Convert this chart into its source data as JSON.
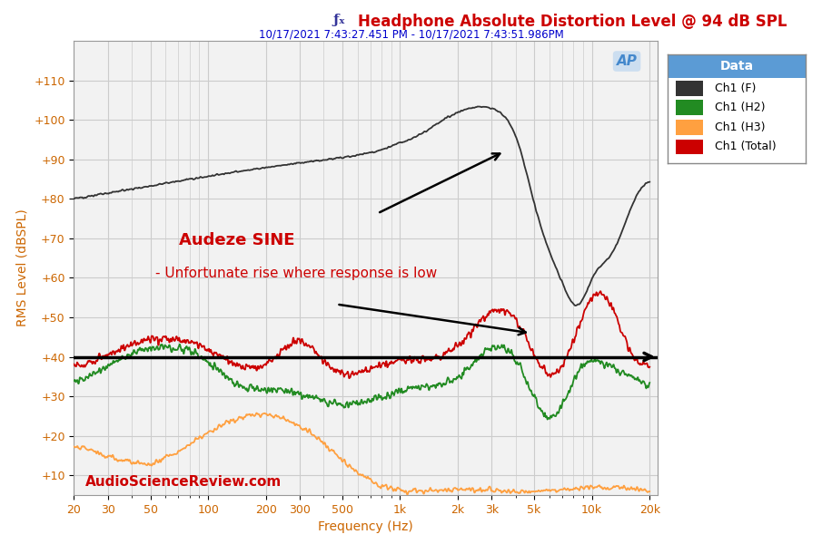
{
  "title": "Headphone Absolute Distortion Level @ 94 dB SPL",
  "subtitle": "10/17/2021 7:43:27.451 PM - 10/17/2021 7:43:51.986PM",
  "xlabel": "Frequency (Hz)",
  "ylabel": "RMS Level (dBSPL)",
  "title_color": "#CC0000",
  "subtitle_color": "#0000CC",
  "ylabel_color": "#CC6600",
  "xlabel_color": "#CC6600",
  "ytick_color": "#CC6600",
  "xtick_color": "#CC6600",
  "ylim": [
    5,
    120
  ],
  "yticks": [
    10,
    20,
    30,
    40,
    50,
    60,
    70,
    80,
    90,
    100,
    110
  ],
  "bg_color": "#F2F2F2",
  "grid_color": "#CCCCCC",
  "legend_title": "Data",
  "legend_title_bg": "#5B9BD5",
  "annotation1": "Audeze SINE",
  "annotation2": "- Unfortunate rise where response is low",
  "annotation_color": "#CC0000",
  "watermark": "AudioScienceReview.com",
  "watermark_color": "#CC0000",
  "line_color_F": "#333333",
  "line_color_H2": "#228B22",
  "line_color_H3": "#FFA040",
  "line_color_Total": "#CC0000"
}
